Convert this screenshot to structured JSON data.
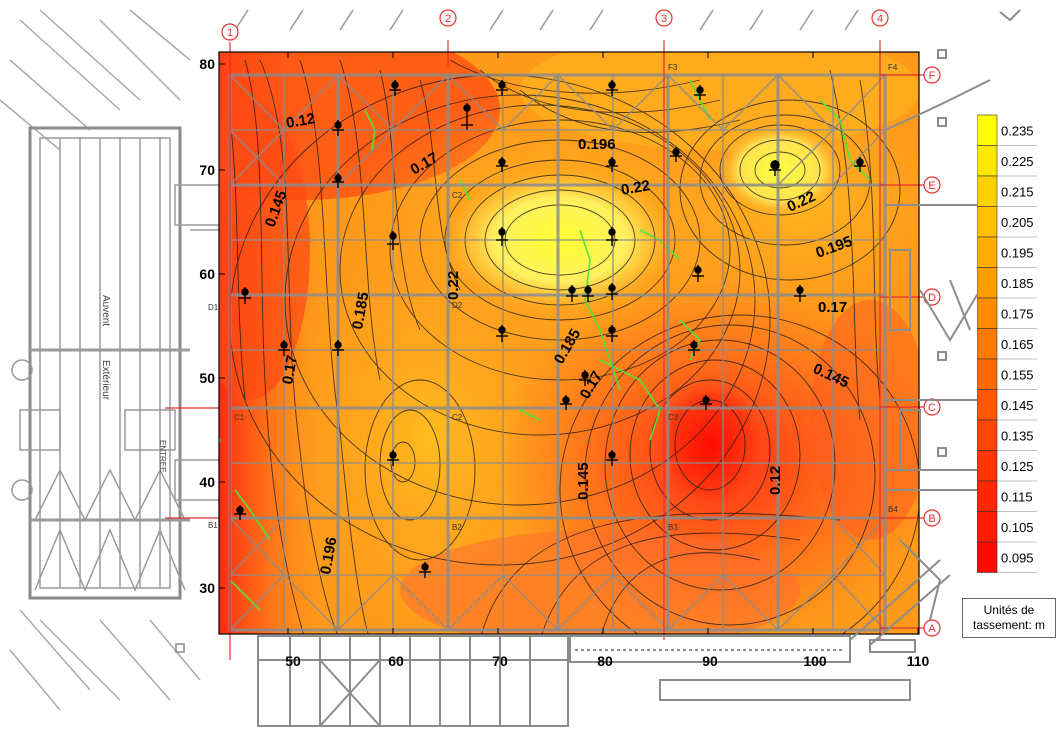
{
  "map": {
    "x_ticks": [
      "50",
      "60",
      "70",
      "80",
      "90",
      "100",
      "110"
    ],
    "y_ticks": [
      "80",
      "70",
      "60",
      "50",
      "40",
      "30"
    ],
    "contour_labels": [
      "0.12",
      "0.17",
      "0.145",
      "0.196",
      "0.22",
      "0.185",
      "0.22",
      "0.22",
      "0.195",
      "0.17",
      "0.17",
      "0.185",
      "0.17",
      "0.145",
      "0.145",
      "0.12",
      "0.196"
    ],
    "grid_axes_top": [
      "1",
      "2",
      "3",
      "4"
    ],
    "grid_axes_right": [
      "F",
      "E",
      "D",
      "C",
      "B",
      "A"
    ],
    "cell_labels": [
      "C2",
      "D2",
      "C2",
      "B2",
      "B3",
      "C3",
      "D1",
      "C1",
      "B1",
      "F3",
      "F4",
      "B4"
    ],
    "building_text": [
      "Auvent",
      "Extérieur",
      "ENTREE"
    ]
  },
  "legend": {
    "values": [
      "0.235",
      "0.225",
      "0.215",
      "0.205",
      "0.195",
      "0.185",
      "0.175",
      "0.165",
      "0.155",
      "0.145",
      "0.135",
      "0.125",
      "0.115",
      "0.105",
      "0.095"
    ],
    "colors": [
      "#ffff00",
      "#ffe800",
      "#ffd000",
      "#ffc000",
      "#ffae00",
      "#ff9e00",
      "#ff8c00",
      "#ff7a00",
      "#ff6a00",
      "#ff5800",
      "#ff4600",
      "#ff3600",
      "#ff2800",
      "#ff1a00",
      "#ff0a00"
    ],
    "units_line1": "Unités de",
    "units_line2": "tassement: m"
  }
}
